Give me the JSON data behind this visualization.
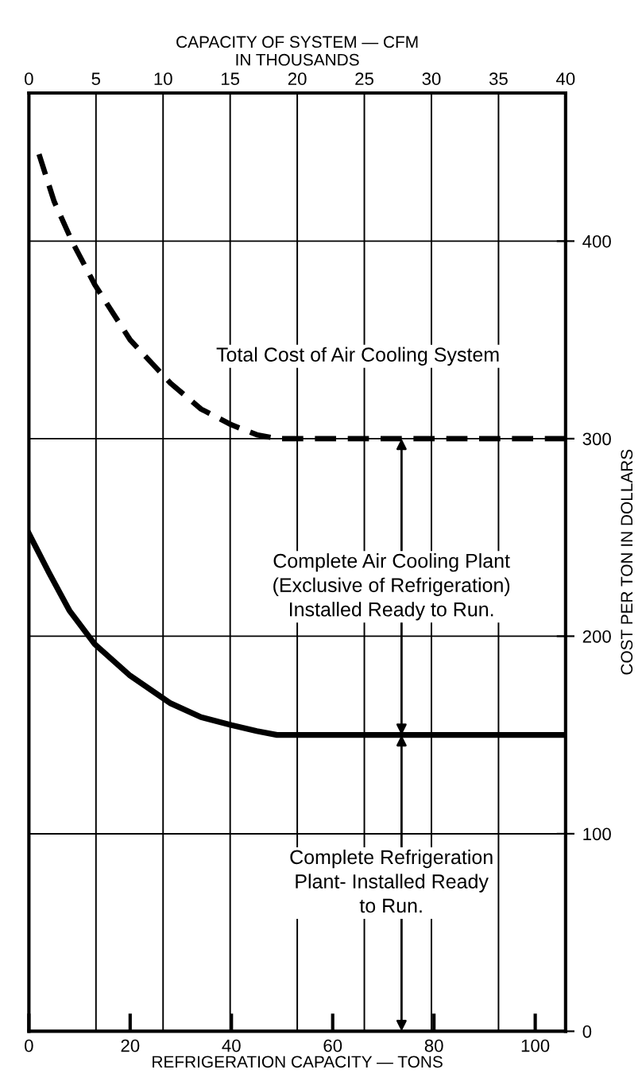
{
  "chart_data": {
    "type": "line",
    "xlabel": "REFRIGERATION CAPACITY — TONS",
    "x2label": "CAPACITY OF SYSTEM — CFM\nIN THOUSANDS",
    "ylabel": "COST PER TON IN DOLLARS",
    "xlim": [
      0,
      106
    ],
    "xticks": [
      0,
      20,
      40,
      60,
      80,
      100
    ],
    "x2lim": [
      0,
      40
    ],
    "x2ticks": [
      0,
      5,
      10,
      15,
      20,
      25,
      30,
      35,
      40
    ],
    "ylim": [
      0,
      475
    ],
    "yticks": [
      0,
      100,
      200,
      300,
      400
    ],
    "grid": true,
    "series": [
      {
        "name": "Total Cost of Air Cooling System",
        "color": "#000000",
        "line_style": "dashed",
        "x": [
          2,
          5,
          8.5,
          13,
          20,
          28,
          34,
          40,
          45,
          49,
          60,
          80,
          106
        ],
        "values": [
          444,
          420,
          400,
          378,
          350,
          328,
          315,
          307,
          302,
          300,
          300,
          300,
          300
        ]
      },
      {
        "color": "#000000",
        "line_style": "solid",
        "x": [
          0,
          4,
          8,
          13,
          20,
          28,
          34,
          40,
          45,
          49,
          60,
          80,
          106
        ],
        "values": [
          252,
          232,
          213,
          196,
          180,
          166,
          159,
          155,
          152,
          150,
          150,
          150,
          150
        ]
      }
    ],
    "annotations": [
      {
        "text": "Complete Air Cooling Plant\n(Exclusive of Refrigeration)\nInstalled Ready to Run.",
        "x": 73.6,
        "y": 300
      },
      {
        "text": "Complete Refrigeration\nPlant- Installed Ready\nto Run.",
        "x": 73.6,
        "y": 150
      }
    ]
  }
}
